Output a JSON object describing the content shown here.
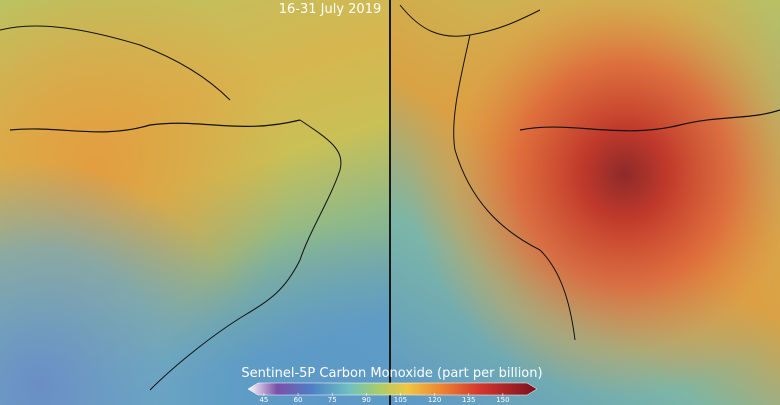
{
  "title": "16-31 July 2019",
  "colorbar": {
    "label": "Sentinel-5P Carbon Monoxide (part per billion)",
    "lim": [
      38,
      165
    ],
    "ticks": [
      45,
      60,
      75,
      90,
      105,
      120,
      135,
      150
    ]
  }
}
